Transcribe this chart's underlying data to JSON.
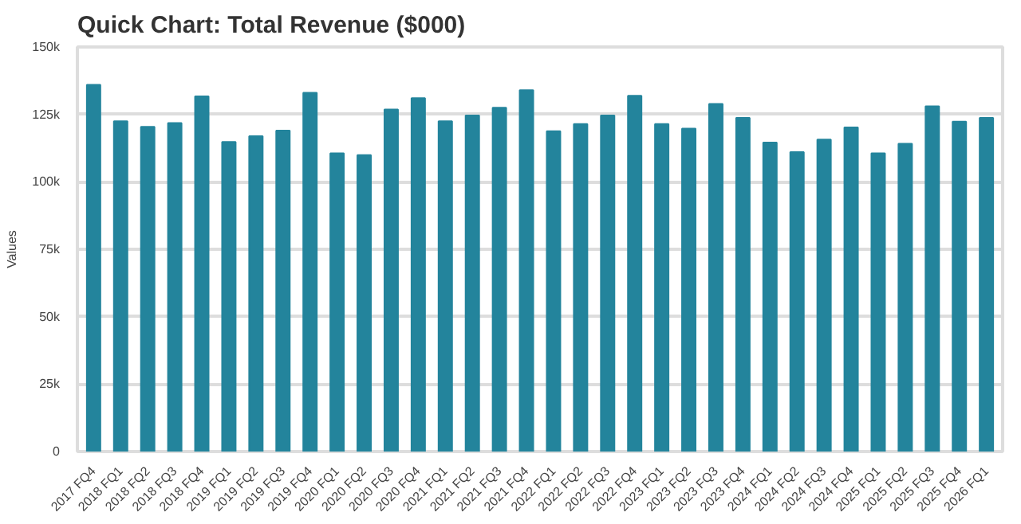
{
  "chart_data": {
    "type": "bar",
    "title": "Quick Chart: Total Revenue ($000)",
    "ylabel": "Values",
    "categories": [
      "2017 FQ4",
      "2018 FQ1",
      "2018 FQ2",
      "2018 FQ3",
      "2018 FQ4",
      "2019 FQ1",
      "2019 FQ2",
      "2019 FQ3",
      "2019 FQ4",
      "2020 FQ1",
      "2020 FQ2",
      "2020 FQ3",
      "2020 FQ4",
      "2021 FQ1",
      "2021 FQ2",
      "2021 FQ3",
      "2021 FQ4",
      "2022 FQ1",
      "2022 FQ2",
      "2022 FQ3",
      "2022 FQ4",
      "2023 FQ1",
      "2023 FQ2",
      "2023 FQ3",
      "2023 FQ4",
      "2024 FQ1",
      "2024 FQ2",
      "2024 FQ3",
      "2024 FQ4",
      "2025 FQ1",
      "2025 FQ2",
      "2025 FQ3",
      "2025 FQ4",
      "2026 FQ1"
    ],
    "values": [
      136000,
      122500,
      120400,
      121800,
      131700,
      114800,
      116900,
      119000,
      133000,
      110600,
      109900,
      126800,
      131000,
      122500,
      124600,
      127500,
      134000,
      118800,
      121400,
      124600,
      131900,
      121400,
      119700,
      128900,
      123700,
      114600,
      111000,
      115700,
      120200,
      110600,
      114100,
      128000,
      122300,
      123700
    ],
    "color": "#23849c",
    "ylim": [
      0,
      150000
    ],
    "yticks": [
      {
        "value": 0,
        "label": "0"
      },
      {
        "value": 25000,
        "label": "25k"
      },
      {
        "value": 50000,
        "label": "50k"
      },
      {
        "value": 75000,
        "label": "75k"
      },
      {
        "value": 100000,
        "label": "100k"
      },
      {
        "value": 125000,
        "label": "125k"
      },
      {
        "value": 150000,
        "label": "150k"
      }
    ],
    "grid": "y"
  }
}
